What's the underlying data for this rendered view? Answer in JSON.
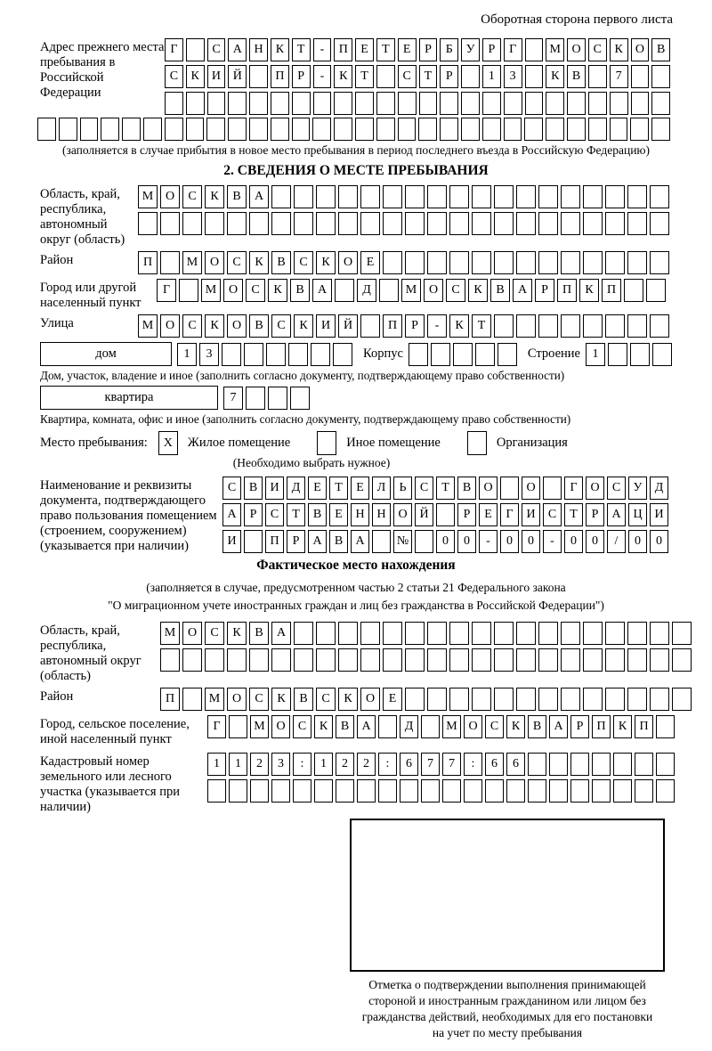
{
  "header": {
    "note": "Оборотная сторона первого листа"
  },
  "prev_address": {
    "label": "Адрес прежнего места пребывания в Российской Федерации",
    "rows": [
      {
        "chars": "Г САНКТ-ПЕТЕРБУРГ МОСКОВ",
        "count": 24
      },
      {
        "chars": "СКИЙ ПР-КТ СТР 13 КВ 7",
        "count": 24
      },
      {
        "chars": "",
        "count": 24
      },
      {
        "chars": "",
        "count": 30
      }
    ],
    "note": "(заполняется в случае прибытия в новое место пребывания в период последнего въезда в Российскую Федерацию)"
  },
  "section2": {
    "title": "2. СВЕДЕНИЯ О МЕСТЕ ПРЕБЫВАНИЯ",
    "region": {
      "label": "Область, край, республика, автономный округ (область)",
      "rows": [
        {
          "chars": "МОСКВА",
          "count": 24
        },
        {
          "chars": "",
          "count": 24
        }
      ]
    },
    "district": {
      "label": "Район",
      "row": {
        "chars": "П МОСКВСКОЕ",
        "count": 24
      }
    },
    "city": {
      "label": "Город или другой населенный пункт",
      "row": {
        "chars": "Г МОСКВА Д МОСКВАРПКП",
        "count": 23
      }
    },
    "street": {
      "label": "Улица",
      "row": {
        "chars": "МОСКОВСКИЙ ПР-КТ",
        "count": 24
      }
    },
    "house": {
      "field_label": "дом",
      "number": {
        "chars": "13",
        "count": 8
      },
      "korpus_label": "Корпус",
      "korpus": {
        "chars": "",
        "count": 5
      },
      "stroenie_label": "Строение",
      "stroenie": {
        "chars": "1",
        "count": 4
      },
      "caption": "Дом, участок, владение и иное (заполнить согласно документу, подтверждающему право собственности)"
    },
    "apartment": {
      "field_label": "квартира",
      "number": {
        "chars": "7",
        "count": 4
      },
      "caption": "Квартира, комната, офис и иное (заполнить согласно документу, подтверждающему право собственности)"
    },
    "stay_type": {
      "label": "Место пребывания:",
      "options": [
        {
          "label": "Жилое помещение",
          "checkbox": {
            "chars": "X",
            "count": 1
          }
        },
        {
          "label": "Иное помещение",
          "checkbox": {
            "chars": "",
            "count": 1
          }
        },
        {
          "label": "Организация",
          "checkbox": {
            "chars": "",
            "count": 1
          }
        }
      ],
      "hint": "(Необходимо выбрать нужное)"
    },
    "document": {
      "label": "Наименование и реквизиты документа, подтверждающего право пользования помещением (строением, сооружением) (указывается при наличии)",
      "rows": [
        {
          "chars": "СВИДЕТЕЛЬСТВО О ГОСУД",
          "count": 21
        },
        {
          "chars": "АРСТВЕННОЙ РЕГИСТРАЦИ",
          "count": 21
        },
        {
          "chars": "И ПРАВА № 00-00-00/000",
          "count": 21
        }
      ]
    }
  },
  "actual_location": {
    "title": "Фактическое место нахождения",
    "note_line1": "(заполняется в случае, предусмотренном частью 2 статьи 21 Федерального закона",
    "note_line2": "\"О миграционном учете иностранных граждан и лиц без гражданства в Российской Федерации\")",
    "region": {
      "label": "Область, край, республика, автономный округ (область)",
      "rows": [
        {
          "chars": "МОСКВА",
          "count": 24
        },
        {
          "chars": "",
          "count": 24
        }
      ]
    },
    "district": {
      "label": "Район",
      "row": {
        "chars": "П МОСКВСКОЕ",
        "count": 24
      }
    },
    "city": {
      "label": "Город, сельское поселение, иной населенный пункт",
      "row": {
        "chars": "Г МОСКВА Д МОСКВАРПКП",
        "count": 22
      }
    },
    "cadastral": {
      "label": "Кадастровый номер земельного или лесного участка (указывается при наличии)",
      "rows": [
        {
          "chars": "1123:122:677:66",
          "count": 22
        },
        {
          "chars": "",
          "count": 22
        }
      ]
    },
    "stamp_caption": [
      "Отметка о подтверждении выполнения принимающей",
      "стороной и иностранным гражданином или лицом без",
      "гражданства действий, необходимых для его постановки",
      "на учет по месту пребывания"
    ]
  }
}
